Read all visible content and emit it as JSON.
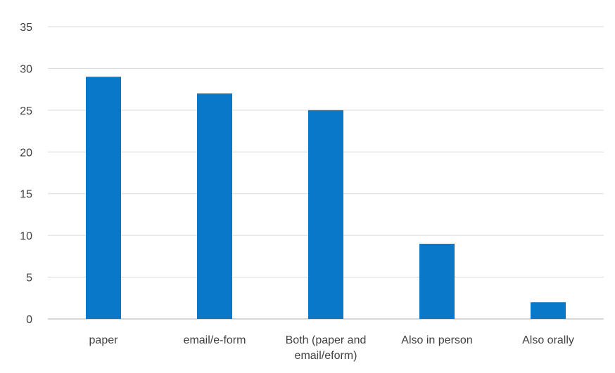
{
  "chart_data": {
    "type": "bar",
    "categories": [
      "paper",
      "email/e-form",
      "Both (paper and email/eform)",
      "Also in person",
      "Also orally"
    ],
    "category_lines": [
      [
        "paper"
      ],
      [
        "email/e-form"
      ],
      [
        "Both (paper and",
        "email/eform)"
      ],
      [
        "Also in person"
      ],
      [
        "Also orally"
      ]
    ],
    "series": [
      {
        "values": [
          29,
          27,
          25,
          9,
          2
        ]
      }
    ],
    "ylim": [
      0,
      35
    ],
    "yticks": [
      0,
      5,
      10,
      15,
      20,
      25,
      30,
      35
    ],
    "title": "",
    "xlabel": "",
    "ylabel": "",
    "grid": true,
    "legend": "none",
    "bar_color": "#0a78c8",
    "grid_color": "#d9d9d9"
  }
}
